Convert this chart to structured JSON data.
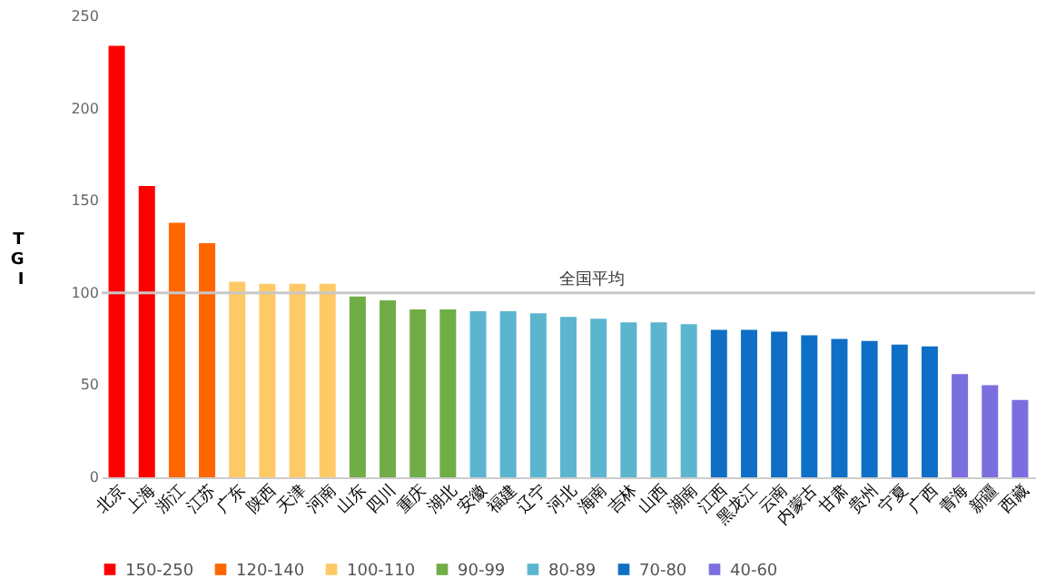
{
  "chart_data": {
    "type": "bar",
    "ylabel": "TGI",
    "categories": [
      "北京",
      "上海",
      "浙江",
      "江苏",
      "广东",
      "陕西",
      "天津",
      "河南",
      "山东",
      "四川",
      "重庆",
      "湖北",
      "安徽",
      "福建",
      "辽宁",
      "河北",
      "海南",
      "吉林",
      "山西",
      "湖南",
      "江西",
      "黑龙江",
      "云南",
      "内蒙古",
      "甘肃",
      "贵州",
      "宁夏",
      "广西",
      "青海",
      "新疆",
      "西藏"
    ],
    "series": [
      {
        "name": "150-250",
        "color": "#ff0000",
        "values": [
          234,
          158,
          null,
          null,
          null,
          null,
          null,
          null,
          null,
          null,
          null,
          null,
          null,
          null,
          null,
          null,
          null,
          null,
          null,
          null,
          null,
          null,
          null,
          null,
          null,
          null,
          null,
          null,
          null,
          null,
          null
        ]
      },
      {
        "name": "120-140",
        "color": "#ff6600",
        "values": [
          null,
          null,
          138,
          127,
          null,
          null,
          null,
          null,
          null,
          null,
          null,
          null,
          null,
          null,
          null,
          null,
          null,
          null,
          null,
          null,
          null,
          null,
          null,
          null,
          null,
          null,
          null,
          null,
          null,
          null,
          null
        ]
      },
      {
        "name": "100-110",
        "color": "#ffc966",
        "values": [
          null,
          null,
          null,
          null,
          106,
          105,
          105,
          105,
          null,
          null,
          null,
          null,
          null,
          null,
          null,
          null,
          null,
          null,
          null,
          null,
          null,
          null,
          null,
          null,
          null,
          null,
          null,
          null,
          null,
          null,
          null
        ]
      },
      {
        "name": "90-99",
        "color": "#70ad47",
        "values": [
          null,
          null,
          null,
          null,
          null,
          null,
          null,
          null,
          98,
          96,
          91,
          91,
          null,
          null,
          null,
          null,
          null,
          null,
          null,
          null,
          null,
          null,
          null,
          null,
          null,
          null,
          null,
          null,
          null,
          null,
          null
        ]
      },
      {
        "name": "80-89",
        "color": "#5bb5cf",
        "values": [
          null,
          null,
          null,
          null,
          null,
          null,
          null,
          null,
          null,
          null,
          null,
          null,
          90,
          90,
          89,
          87,
          86,
          84,
          84,
          83,
          null,
          null,
          null,
          null,
          null,
          null,
          null,
          null,
          null,
          null,
          null
        ]
      },
      {
        "name": "70-80",
        "color": "#0f6fc6",
        "values": [
          null,
          null,
          null,
          null,
          null,
          null,
          null,
          null,
          null,
          null,
          null,
          null,
          null,
          null,
          null,
          null,
          null,
          null,
          null,
          null,
          80,
          80,
          79,
          77,
          75,
          74,
          72,
          71,
          null,
          null,
          null
        ]
      },
      {
        "name": "40-60",
        "color": "#7b6fe0",
        "values": [
          null,
          null,
          null,
          null,
          null,
          null,
          null,
          null,
          null,
          null,
          null,
          null,
          null,
          null,
          null,
          null,
          null,
          null,
          null,
          null,
          null,
          null,
          null,
          null,
          null,
          null,
          null,
          null,
          56,
          50,
          42
        ]
      }
    ],
    "ylim": [
      0,
      250
    ],
    "yticks": [
      0,
      50,
      100,
      150,
      200,
      250
    ],
    "grid": false,
    "legend": "bottom",
    "ref_lines": [
      {
        "axis": "y",
        "value": 100,
        "label": "全国平均",
        "color": "#c8c8c8"
      }
    ]
  }
}
